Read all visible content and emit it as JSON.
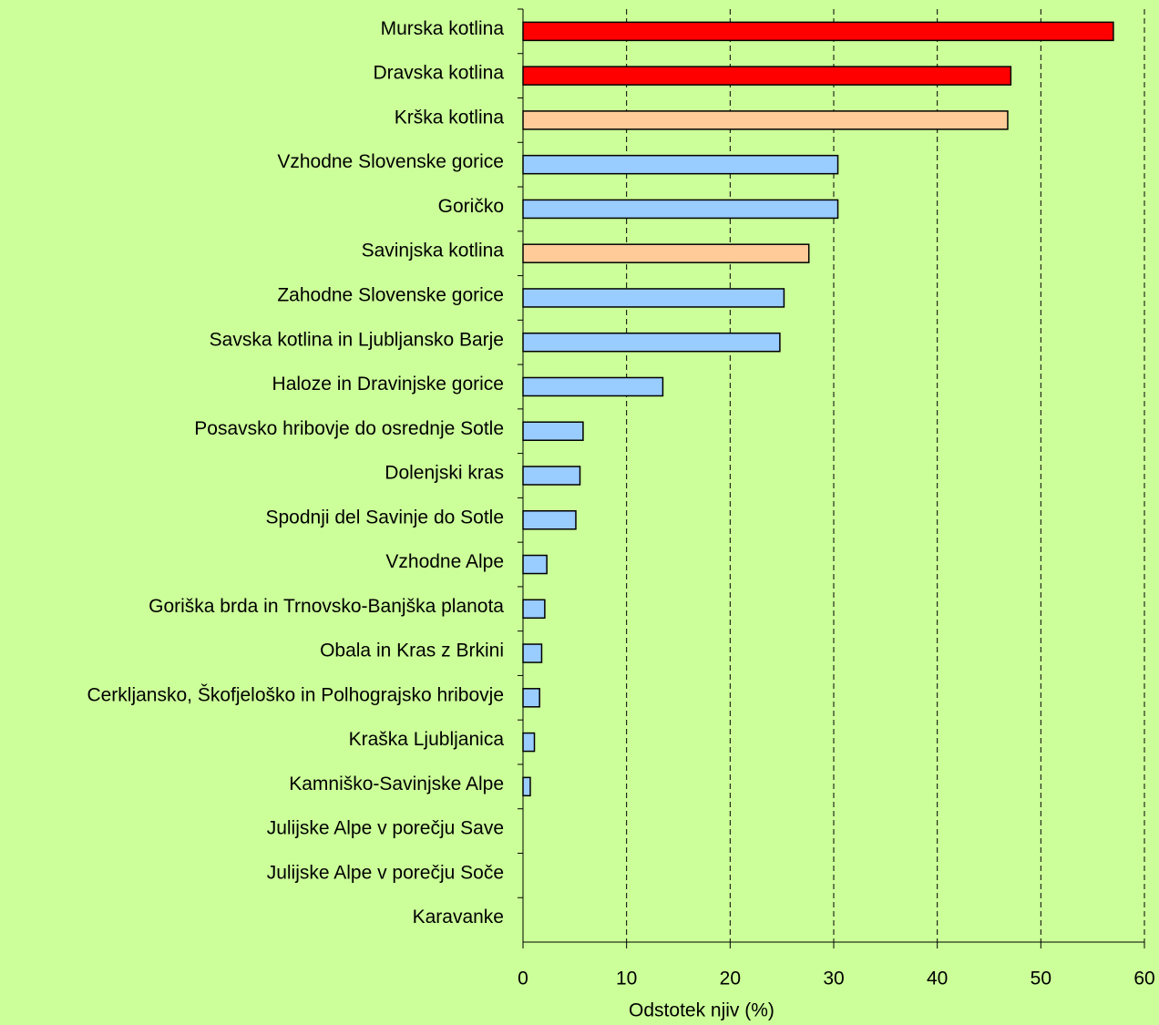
{
  "chart_data": {
    "type": "hbar",
    "x_label": "Odstotek njiv (%)",
    "categories": [
      "Murska kotlina",
      "Dravska kotlina",
      "Krška kotlina",
      "Vzhodne Slovenske gorice",
      "Goričko",
      "Savinjska kotlina",
      "Zahodne Slovenske gorice",
      "Savska kotlina in Ljubljansko Barje",
      "Haloze in Dravinjske gorice",
      "Posavsko hribovje do osrednje Sotle",
      "Dolenjski kras",
      "Spodnji del Savinje do Sotle",
      "Vzhodne Alpe",
      "Goriška brda in Trnovsko-Banjška planota",
      "Obala in Kras z Brkini",
      "Cerkljansko, Škofjeloško in Polhograjsko hribovje",
      "Kraška Ljubljanica",
      "Kamniško-Savinjske Alpe",
      "Julijske Alpe v porečju Save",
      "Julijske Alpe v porečju Soče",
      "Karavanke"
    ],
    "values": [
      57.0,
      47.1,
      46.8,
      30.4,
      30.4,
      27.6,
      25.2,
      24.8,
      13.5,
      5.8,
      5.5,
      5.1,
      2.3,
      2.1,
      1.8,
      1.6,
      1.1,
      0.7,
      0,
      0,
      0
    ],
    "colors": [
      "#ff0000",
      "#ff0000",
      "#ffcc99",
      "#99ccff",
      "#99ccff",
      "#ffcc99",
      "#99ccff",
      "#99ccff",
      "#99ccff",
      "#99ccff",
      "#99ccff",
      "#99ccff",
      "#99ccff",
      "#99ccff",
      "#99ccff",
      "#99ccff",
      "#99ccff",
      "#99ccff",
      "#99ccff",
      "#99ccff",
      "#99ccff"
    ],
    "xlim": [
      0,
      60
    ],
    "xticks": [
      0,
      10,
      20,
      30,
      40,
      50,
      60
    ],
    "grid": true
  }
}
